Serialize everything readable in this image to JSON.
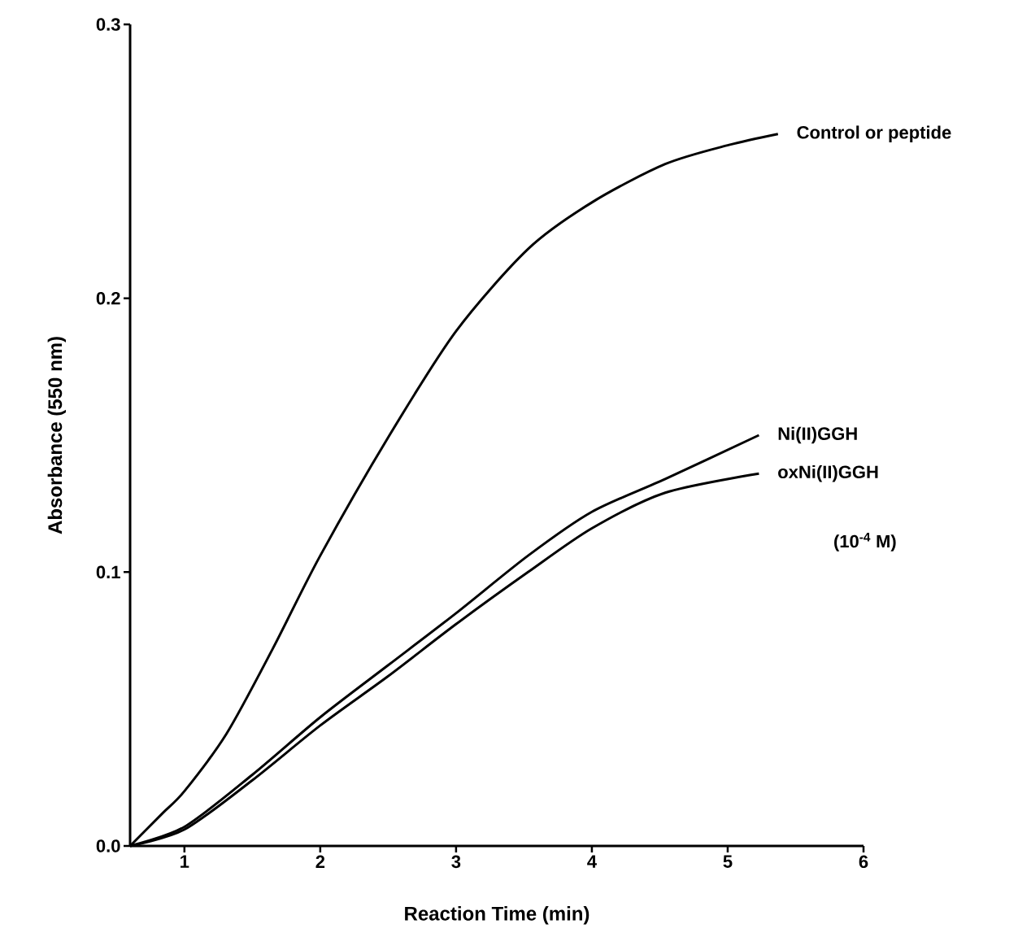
{
  "chart_data": {
    "type": "line",
    "xlabel": "Reaction Time  (min)",
    "ylabel": "Absorbance  (550 nm)",
    "xlim": [
      0.6,
      6.0
    ],
    "ylim": [
      0.0,
      0.3
    ],
    "xticks": [
      1,
      2,
      3,
      4,
      5,
      6
    ],
    "yticks": [
      {
        "value": 0,
        "label": "0.0"
      },
      {
        "value": 0.1,
        "label": "0.1"
      },
      {
        "value": 0.2,
        "label": "0.2"
      },
      {
        "value": 0.3,
        "label": "0.3"
      }
    ],
    "annotations": [
      "(10$^{-4}$ M)"
    ],
    "series": [
      {
        "name": "Control or peptide",
        "color": "#000000",
        "x": [
          0.6,
          0.84,
          1.0,
          1.31,
          1.65,
          2.0,
          2.51,
          3.0,
          3.53,
          4.0,
          4.54,
          5.01,
          5.37
        ],
        "values": [
          0.0,
          0.012,
          0.02,
          0.041,
          0.072,
          0.106,
          0.15,
          0.188,
          0.218,
          0.235,
          0.249,
          0.256,
          0.26
        ]
      },
      {
        "name": "Ni(II)GGH",
        "color": "#000000",
        "x": [
          0.6,
          1.0,
          1.5,
          2.0,
          2.5,
          3.0,
          3.53,
          4.0,
          4.54,
          5.23
        ],
        "values": [
          0.0,
          0.007,
          0.026,
          0.047,
          0.066,
          0.085,
          0.106,
          0.122,
          0.134,
          0.15
        ]
      },
      {
        "name": "oxNi(II)GGH",
        "color": "#000000",
        "x": [
          0.6,
          1.0,
          1.5,
          2.0,
          2.5,
          3.0,
          3.53,
          4.0,
          4.54,
          5.23
        ],
        "values": [
          0.0,
          0.006,
          0.024,
          0.044,
          0.062,
          0.081,
          0.1,
          0.116,
          0.129,
          0.136
        ]
      }
    ]
  }
}
